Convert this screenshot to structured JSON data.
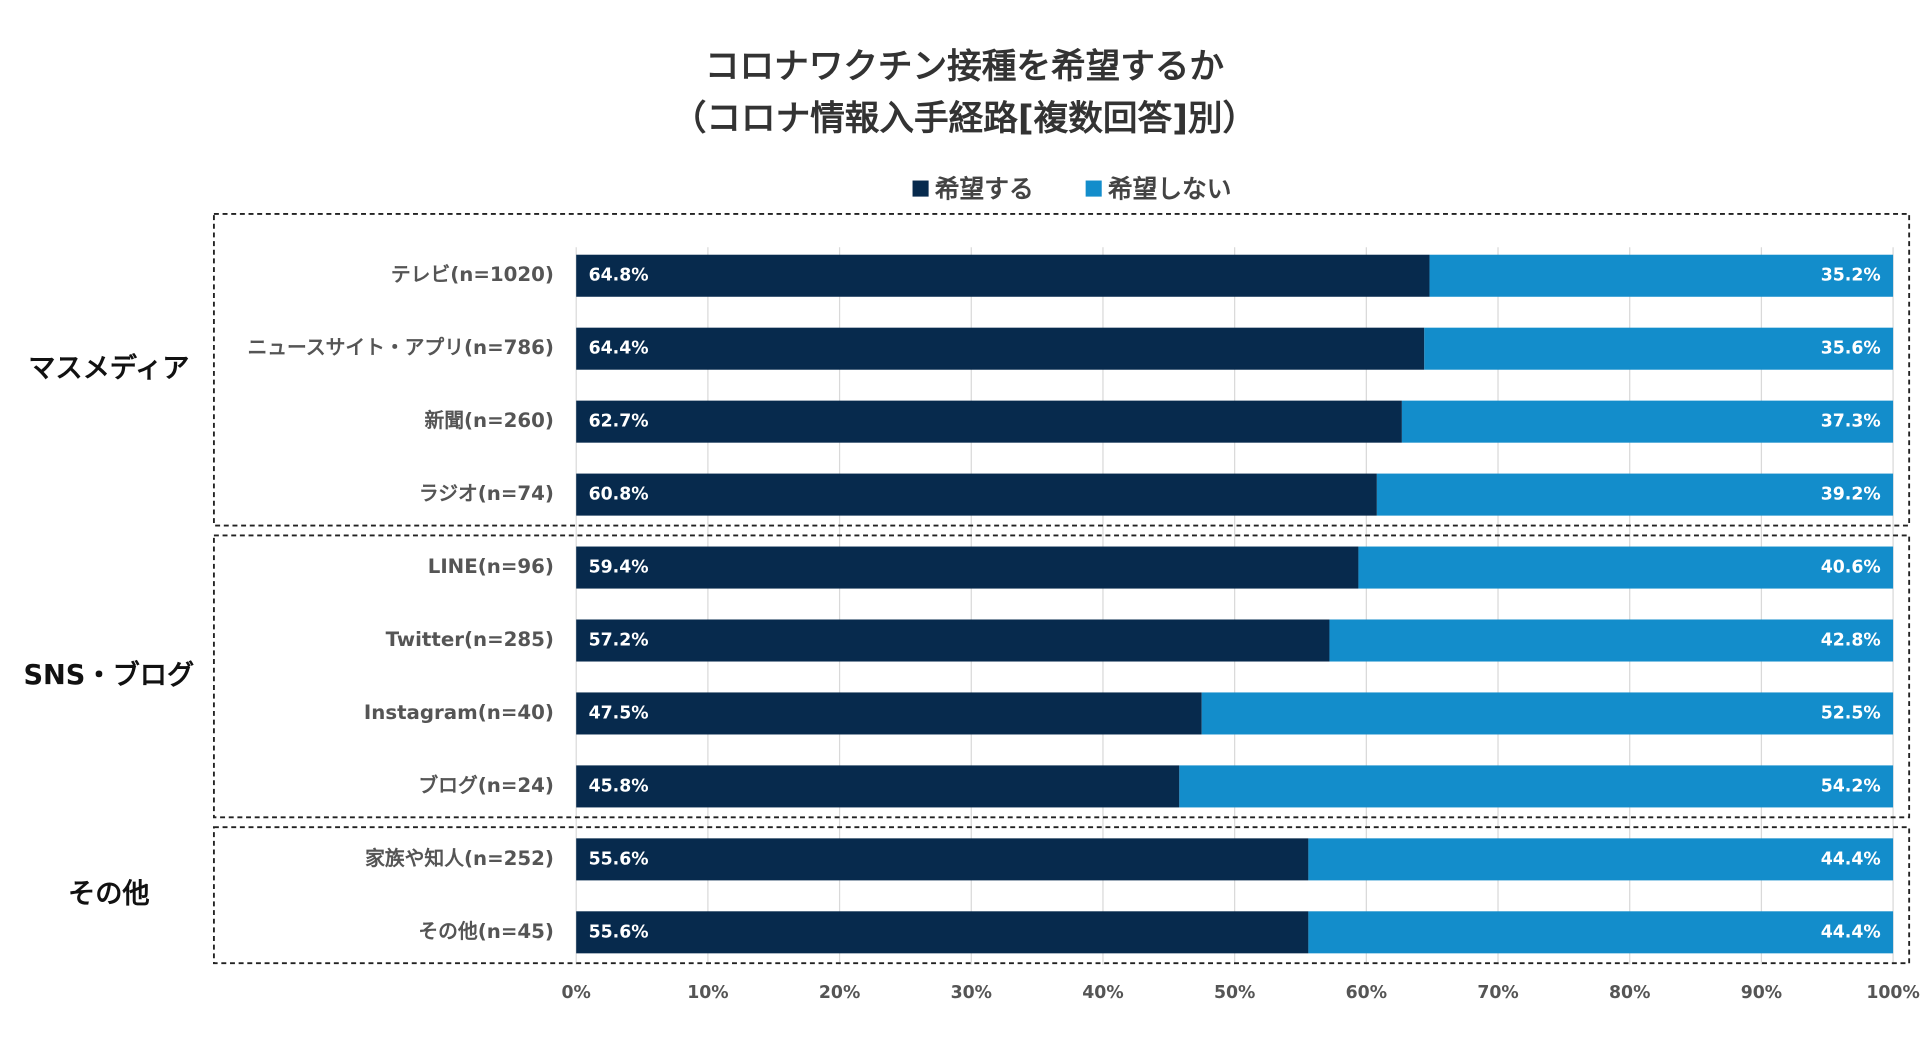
{
  "chart_data": {
    "type": "stacked-bar-horizontal",
    "title": [
      "コロナワクチン接種を希望するか",
      "（コロナ情報入手経路[複数回答]別）"
    ],
    "groups": [
      {
        "name": "マスメディア",
        "categories": [
          "テレビ(n=1020)",
          "ニュースサイト・アプリ(n=786)",
          "新聞(n=260)",
          "ラジオ(n=74)"
        ]
      },
      {
        "name": "SNS・ブログ",
        "categories": [
          "LINE(n=96)",
          "Twitter(n=285)",
          "Instagram(n=40)",
          "ブログ(n=24)"
        ]
      },
      {
        "name": "その他",
        "categories": [
          "家族や知人(n=252)",
          "その他(n=45)"
        ]
      }
    ],
    "series": [
      {
        "name": "希望する",
        "color": "#072a4d",
        "values": [
          64.8,
          64.4,
          62.7,
          60.8,
          59.4,
          57.2,
          47.5,
          45.8,
          55.6,
          55.6
        ],
        "value_labels": [
          "64.8%",
          "64.4%",
          "62.7%",
          "60.8%",
          "59.4%",
          "57.2%",
          "47.5%",
          "45.8%",
          "55.6%",
          "55.6%"
        ]
      },
      {
        "name": "希望しない",
        "color": "#138dcb",
        "values": [
          35.2,
          35.6,
          37.3,
          39.2,
          40.6,
          42.8,
          52.5,
          54.2,
          44.4,
          44.4
        ],
        "value_labels": [
          "35.2%",
          "35.6%",
          "37.3%",
          "39.2%",
          "40.6%",
          "42.8%",
          "52.5%",
          "54.2%",
          "44.4%",
          "44.4%"
        ]
      }
    ],
    "xlim": [
      0,
      100
    ],
    "xticks": [
      {
        "value": 0,
        "label": "0%"
      },
      {
        "value": 10,
        "label": "10%"
      },
      {
        "value": 20,
        "label": "20%"
      },
      {
        "value": 30,
        "label": "30%"
      },
      {
        "value": 40,
        "label": "40%"
      },
      {
        "value": 50,
        "label": "50%"
      },
      {
        "value": 60,
        "label": "60%"
      },
      {
        "value": 70,
        "label": "70%"
      },
      {
        "value": 80,
        "label": "80%"
      },
      {
        "value": 90,
        "label": "90%"
      },
      {
        "value": 100,
        "label": "100%"
      }
    ],
    "grid": true,
    "legend": "top"
  }
}
